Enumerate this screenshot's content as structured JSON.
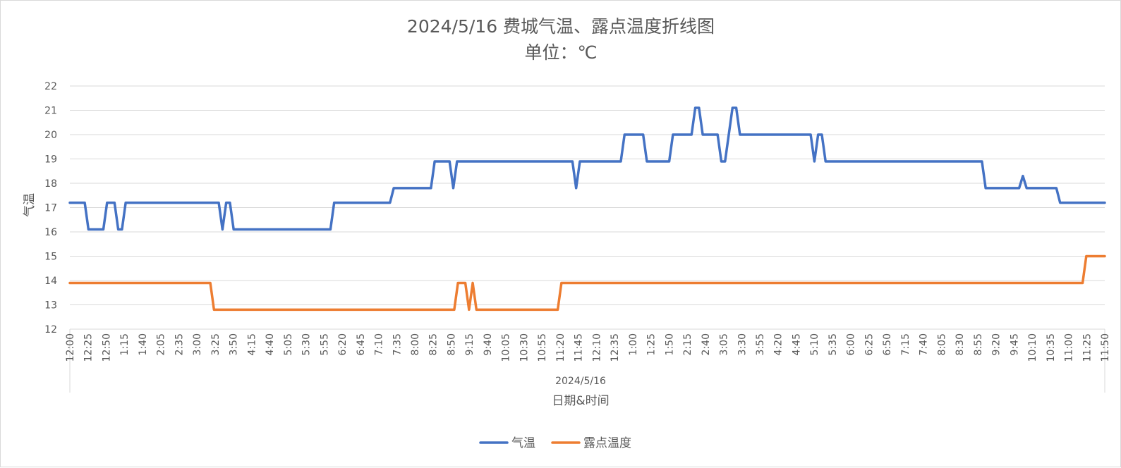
{
  "chart_data": {
    "type": "line",
    "title": "2024/5/16 费城气温、露点温度折线图",
    "subtitle": "单位：℃",
    "ylabel": "气温",
    "xlabel": "日期&时间",
    "x_group_label": "2024/5/16",
    "ylim": [
      12,
      22
    ],
    "yticks": [
      12,
      13,
      14,
      15,
      16,
      17,
      18,
      19,
      20,
      21,
      22
    ],
    "grid": true,
    "legend_position": "bottom",
    "colors": {
      "气温": "#4472C4",
      "露点温度": "#ED7D31"
    },
    "tick_labels": [
      "12:00",
      "12:25",
      "12:50",
      "1:15",
      "1:40",
      "2:05",
      "2:35",
      "3:00",
      "3:25",
      "3:50",
      "4:15",
      "4:40",
      "5:05",
      "5:30",
      "5:55",
      "6:20",
      "6:45",
      "7:10",
      "7:35",
      "8:00",
      "8:25",
      "8:50",
      "9:15",
      "9:40",
      "10:05",
      "10:30",
      "10:55",
      "11:20",
      "11:45",
      "12:10",
      "12:35",
      "1:00",
      "1:25",
      "1:50",
      "2:15",
      "2:40",
      "3:05",
      "3:30",
      "3:55",
      "4:20",
      "4:45",
      "5:10",
      "5:35",
      "6:00",
      "6:25",
      "6:50",
      "7:15",
      "7:40",
      "8:05",
      "8:30",
      "8:55",
      "9:20",
      "9:45",
      "10:10",
      "10:35",
      "11:00",
      "11:25",
      "11:50"
    ],
    "series": [
      {
        "name": "气温",
        "values": [
          17.2,
          17.2,
          17.2,
          17.2,
          17.2,
          16.1,
          16.1,
          16.1,
          16.1,
          16.1,
          17.2,
          17.2,
          17.2,
          16.1,
          16.1,
          17.2,
          17.2,
          17.2,
          17.2,
          17.2,
          17.2,
          17.2,
          17.2,
          17.2,
          17.2,
          17.2,
          17.2,
          17.2,
          17.2,
          17.2,
          17.2,
          17.2,
          17.2,
          17.2,
          17.2,
          17.2,
          17.2,
          17.2,
          17.2,
          17.2,
          17.2,
          16.1,
          17.2,
          17.2,
          16.1,
          16.1,
          16.1,
          16.1,
          16.1,
          16.1,
          16.1,
          16.1,
          16.1,
          16.1,
          16.1,
          16.1,
          16.1,
          16.1,
          16.1,
          16.1,
          16.1,
          16.1,
          16.1,
          16.1,
          16.1,
          16.1,
          16.1,
          16.1,
          16.1,
          16.1,
          16.1,
          17.2,
          17.2,
          17.2,
          17.2,
          17.2,
          17.2,
          17.2,
          17.2,
          17.2,
          17.2,
          17.2,
          17.2,
          17.2,
          17.2,
          17.2,
          17.2,
          17.8,
          17.8,
          17.8,
          17.8,
          17.8,
          17.8,
          17.8,
          17.8,
          17.8,
          17.8,
          17.8,
          18.9,
          18.9,
          18.9,
          18.9,
          18.9,
          17.8,
          18.9,
          18.9,
          18.9,
          18.9,
          18.9,
          18.9,
          18.9,
          18.9,
          18.9,
          18.9,
          18.9,
          18.9,
          18.9,
          18.9,
          18.9,
          18.9,
          18.9,
          18.9,
          18.9,
          18.9,
          18.9,
          18.9,
          18.9,
          18.9,
          18.9,
          18.9,
          18.9,
          18.9,
          18.9,
          18.9,
          18.9,
          18.9,
          17.8,
          18.9,
          18.9,
          18.9,
          18.9,
          18.9,
          18.9,
          18.9,
          18.9,
          18.9,
          18.9,
          18.9,
          18.9,
          20.0,
          20.0,
          20.0,
          20.0,
          20.0,
          20.0,
          18.9,
          18.9,
          18.9,
          18.9,
          18.9,
          18.9,
          18.9,
          20.0,
          20.0,
          20.0,
          20.0,
          20.0,
          20.0,
          21.1,
          21.1,
          20.0,
          20.0,
          20.0,
          20.0,
          20.0,
          18.9,
          18.9,
          20.0,
          21.1,
          21.1,
          20.0,
          20.0,
          20.0,
          20.0,
          20.0,
          20.0,
          20.0,
          20.0,
          20.0,
          20.0,
          20.0,
          20.0,
          20.0,
          20.0,
          20.0,
          20.0,
          20.0,
          20.0,
          20.0,
          20.0,
          18.9,
          20.0,
          20.0,
          18.9,
          18.9,
          18.9,
          18.9,
          18.9,
          18.9,
          18.9,
          18.9,
          18.9,
          18.9,
          18.9,
          18.9,
          18.9,
          18.9,
          18.9,
          18.9,
          18.9,
          18.9,
          18.9,
          18.9,
          18.9,
          18.9,
          18.9,
          18.9,
          18.9,
          18.9,
          18.9,
          18.9,
          18.9,
          18.9,
          18.9,
          18.9,
          18.9,
          18.9,
          18.9,
          18.9,
          18.9,
          18.9,
          18.9,
          18.9,
          18.9,
          18.9,
          18.9,
          17.8,
          17.8,
          17.8,
          17.8,
          17.8,
          17.8,
          17.8,
          17.8,
          17.8,
          17.8,
          18.3,
          17.8,
          17.8,
          17.8,
          17.8,
          17.8,
          17.8,
          17.8,
          17.8,
          17.8,
          17.2,
          17.2,
          17.2,
          17.2,
          17.2,
          17.2,
          17.2,
          17.2,
          17.2,
          17.2,
          17.2,
          17.2,
          17.2
        ]
      },
      {
        "name": "露点温度",
        "values": [
          13.9,
          13.9,
          13.9,
          13.9,
          13.9,
          13.9,
          13.9,
          13.9,
          13.9,
          13.9,
          13.9,
          13.9,
          13.9,
          13.9,
          13.9,
          13.9,
          13.9,
          13.9,
          13.9,
          13.9,
          13.9,
          13.9,
          13.9,
          13.9,
          13.9,
          13.9,
          13.9,
          13.9,
          13.9,
          13.9,
          13.9,
          13.9,
          13.9,
          13.9,
          13.9,
          13.9,
          13.9,
          13.9,
          13.9,
          12.8,
          12.8,
          12.8,
          12.8,
          12.8,
          12.8,
          12.8,
          12.8,
          12.8,
          12.8,
          12.8,
          12.8,
          12.8,
          12.8,
          12.8,
          12.8,
          12.8,
          12.8,
          12.8,
          12.8,
          12.8,
          12.8,
          12.8,
          12.8,
          12.8,
          12.8,
          12.8,
          12.8,
          12.8,
          12.8,
          12.8,
          12.8,
          12.8,
          12.8,
          12.8,
          12.8,
          12.8,
          12.8,
          12.8,
          12.8,
          12.8,
          12.8,
          12.8,
          12.8,
          12.8,
          12.8,
          12.8,
          12.8,
          12.8,
          12.8,
          12.8,
          12.8,
          12.8,
          12.8,
          12.8,
          12.8,
          12.8,
          12.8,
          12.8,
          12.8,
          12.8,
          12.8,
          12.8,
          12.8,
          12.8,
          12.8,
          13.9,
          13.9,
          13.9,
          12.8,
          13.9,
          12.8,
          12.8,
          12.8,
          12.8,
          12.8,
          12.8,
          12.8,
          12.8,
          12.8,
          12.8,
          12.8,
          12.8,
          12.8,
          12.8,
          12.8,
          12.8,
          12.8,
          12.8,
          12.8,
          12.8,
          12.8,
          12.8,
          12.8,
          13.9,
          13.9,
          13.9,
          13.9,
          13.9,
          13.9,
          13.9,
          13.9,
          13.9,
          13.9,
          13.9,
          13.9,
          13.9,
          13.9,
          13.9,
          13.9,
          13.9,
          13.9,
          13.9,
          13.9,
          13.9,
          13.9,
          13.9,
          13.9,
          13.9,
          13.9,
          13.9,
          13.9,
          13.9,
          13.9,
          13.9,
          13.9,
          13.9,
          13.9,
          13.9,
          13.9,
          13.9,
          13.9,
          13.9,
          13.9,
          13.9,
          13.9,
          13.9,
          13.9,
          13.9,
          13.9,
          13.9,
          13.9,
          13.9,
          13.9,
          13.9,
          13.9,
          13.9,
          13.9,
          13.9,
          13.9,
          13.9,
          13.9,
          13.9,
          13.9,
          13.9,
          13.9,
          13.9,
          13.9,
          13.9,
          13.9,
          13.9,
          13.9,
          13.9,
          13.9,
          13.9,
          13.9,
          13.9,
          13.9,
          13.9,
          13.9,
          13.9,
          13.9,
          13.9,
          13.9,
          13.9,
          13.9,
          13.9,
          13.9,
          13.9,
          13.9,
          13.9,
          13.9,
          13.9,
          13.9,
          13.9,
          13.9,
          13.9,
          13.9,
          13.9,
          13.9,
          13.9,
          13.9,
          13.9,
          13.9,
          13.9,
          13.9,
          13.9,
          13.9,
          13.9,
          13.9,
          13.9,
          13.9,
          13.9,
          13.9,
          13.9,
          13.9,
          13.9,
          13.9,
          13.9,
          13.9,
          13.9,
          13.9,
          13.9,
          13.9,
          13.9,
          13.9,
          13.9,
          13.9,
          13.9,
          13.9,
          13.9,
          13.9,
          13.9,
          13.9,
          13.9,
          13.9,
          13.9,
          13.9,
          13.9,
          13.9,
          13.9,
          13.9,
          13.9,
          13.9,
          13.9,
          13.9,
          15.0,
          15.0,
          15.0,
          15.0,
          15.0,
          15.0
        ]
      }
    ]
  }
}
